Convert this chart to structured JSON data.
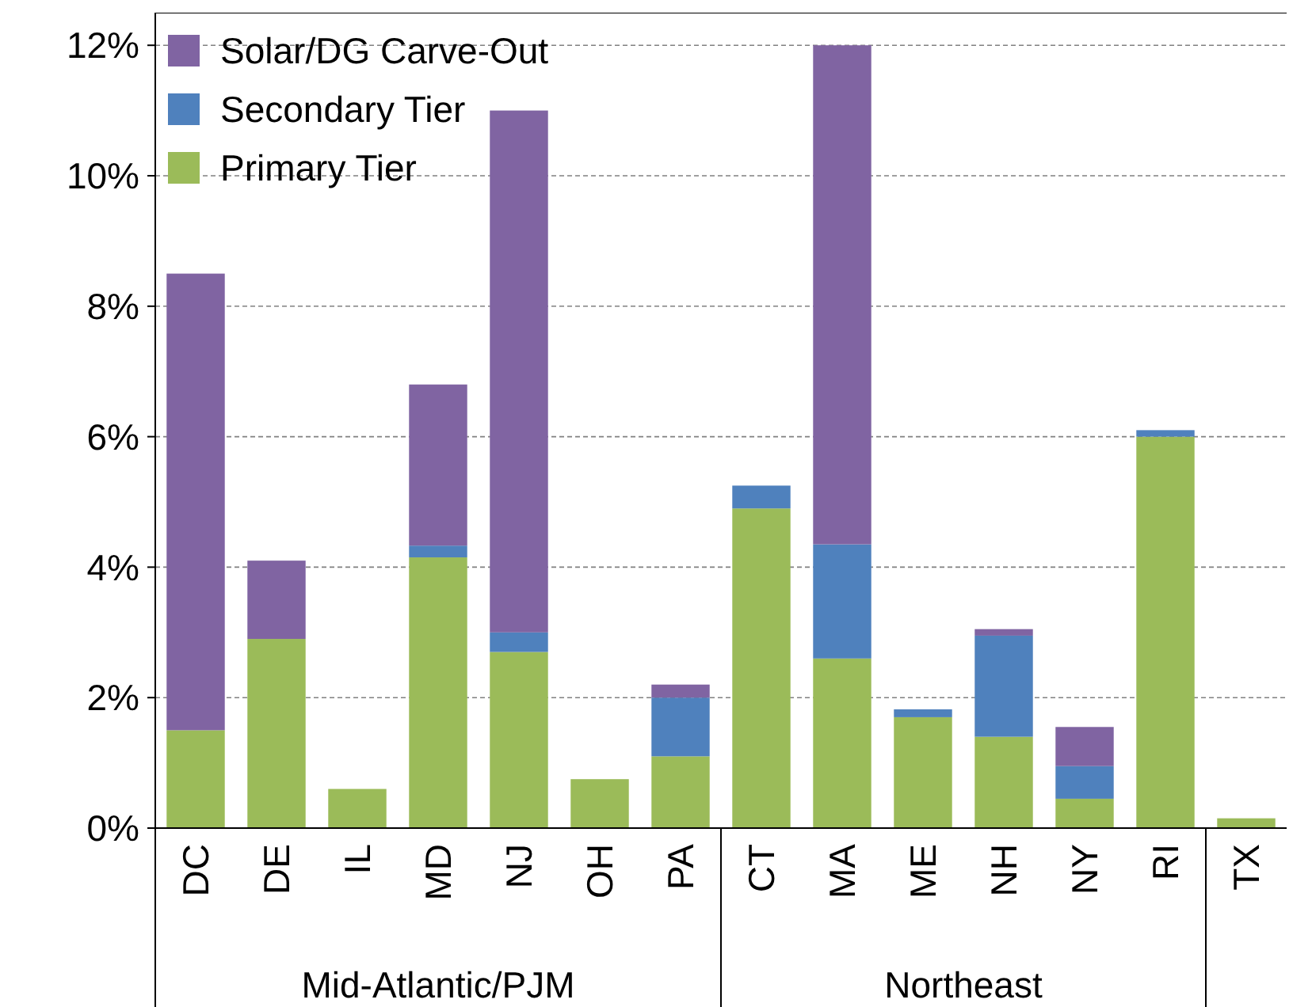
{
  "chart_data": {
    "type": "bar",
    "stacked": true,
    "categories": [
      "DC",
      "DE",
      "IL",
      "MD",
      "NJ",
      "OH",
      "PA",
      "CT",
      "MA",
      "ME",
      "NH",
      "NY",
      "RI",
      "TX"
    ],
    "series": [
      {
        "name": "Primary Tier",
        "color": "#9bbb59",
        "values": [
          1.5,
          2.9,
          0.6,
          4.15,
          2.7,
          0.75,
          1.1,
          4.9,
          2.6,
          1.7,
          1.4,
          0.45,
          6.0,
          0.15
        ]
      },
      {
        "name": "Secondary Tier",
        "color": "#4f81bd",
        "values": [
          null,
          null,
          null,
          0.18,
          0.3,
          null,
          0.9,
          0.35,
          1.75,
          0.12,
          1.55,
          0.5,
          0.1,
          null
        ]
      },
      {
        "name": "Solar/DG Carve-Out",
        "color": "#8064a2",
        "values": [
          7.0,
          1.2,
          null,
          2.47,
          8.0,
          null,
          0.2,
          null,
          7.65,
          null,
          0.1,
          0.6,
          null,
          null
        ]
      }
    ],
    "ylim": [
      0,
      12.5
    ],
    "yticks": [
      {
        "value": 0,
        "label": "0%"
      },
      {
        "value": 2,
        "label": "2%"
      },
      {
        "value": 4,
        "label": "4%"
      },
      {
        "value": 6,
        "label": "6%"
      },
      {
        "value": 8,
        "label": "8%"
      },
      {
        "value": 10,
        "label": "10%"
      },
      {
        "value": 12,
        "label": "12%"
      }
    ],
    "grid": "y",
    "legend": "top left",
    "annotations": [
      "Mid-Atlantic/PJM",
      "Northeast"
    ]
  }
}
